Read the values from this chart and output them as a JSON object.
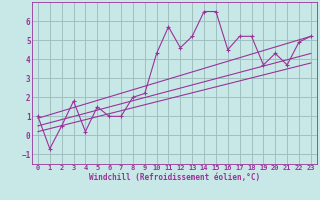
{
  "xlabel": "Windchill (Refroidissement éolien,°C)",
  "bg_color": "#c8e8e8",
  "grid_color": "#a0c0c0",
  "line_color": "#993399",
  "x_data": [
    0,
    1,
    2,
    3,
    4,
    5,
    6,
    7,
    8,
    9,
    10,
    11,
    12,
    13,
    14,
    15,
    16,
    17,
    18,
    19,
    20,
    21,
    22,
    23
  ],
  "y_data": [
    1.0,
    -0.7,
    0.5,
    1.8,
    0.2,
    1.5,
    1.0,
    1.0,
    2.0,
    2.2,
    4.3,
    5.7,
    4.6,
    5.2,
    6.5,
    6.5,
    4.5,
    5.2,
    5.2,
    3.7,
    4.3,
    3.7,
    4.9,
    5.2
  ],
  "trend1_x": [
    0,
    23
  ],
  "trend1_y": [
    0.5,
    4.3
  ],
  "trend2_x": [
    0,
    23
  ],
  "trend2_y": [
    0.9,
    5.2
  ],
  "trend3_x": [
    0,
    23
  ],
  "trend3_y": [
    0.2,
    3.8
  ],
  "xlim": [
    -0.5,
    23.5
  ],
  "ylim": [
    -1.5,
    7.0
  ],
  "yticks": [
    -1,
    0,
    1,
    2,
    3,
    4,
    5,
    6
  ],
  "xticks": [
    0,
    1,
    2,
    3,
    4,
    5,
    6,
    7,
    8,
    9,
    10,
    11,
    12,
    13,
    14,
    15,
    16,
    17,
    18,
    19,
    20,
    21,
    22,
    23
  ]
}
